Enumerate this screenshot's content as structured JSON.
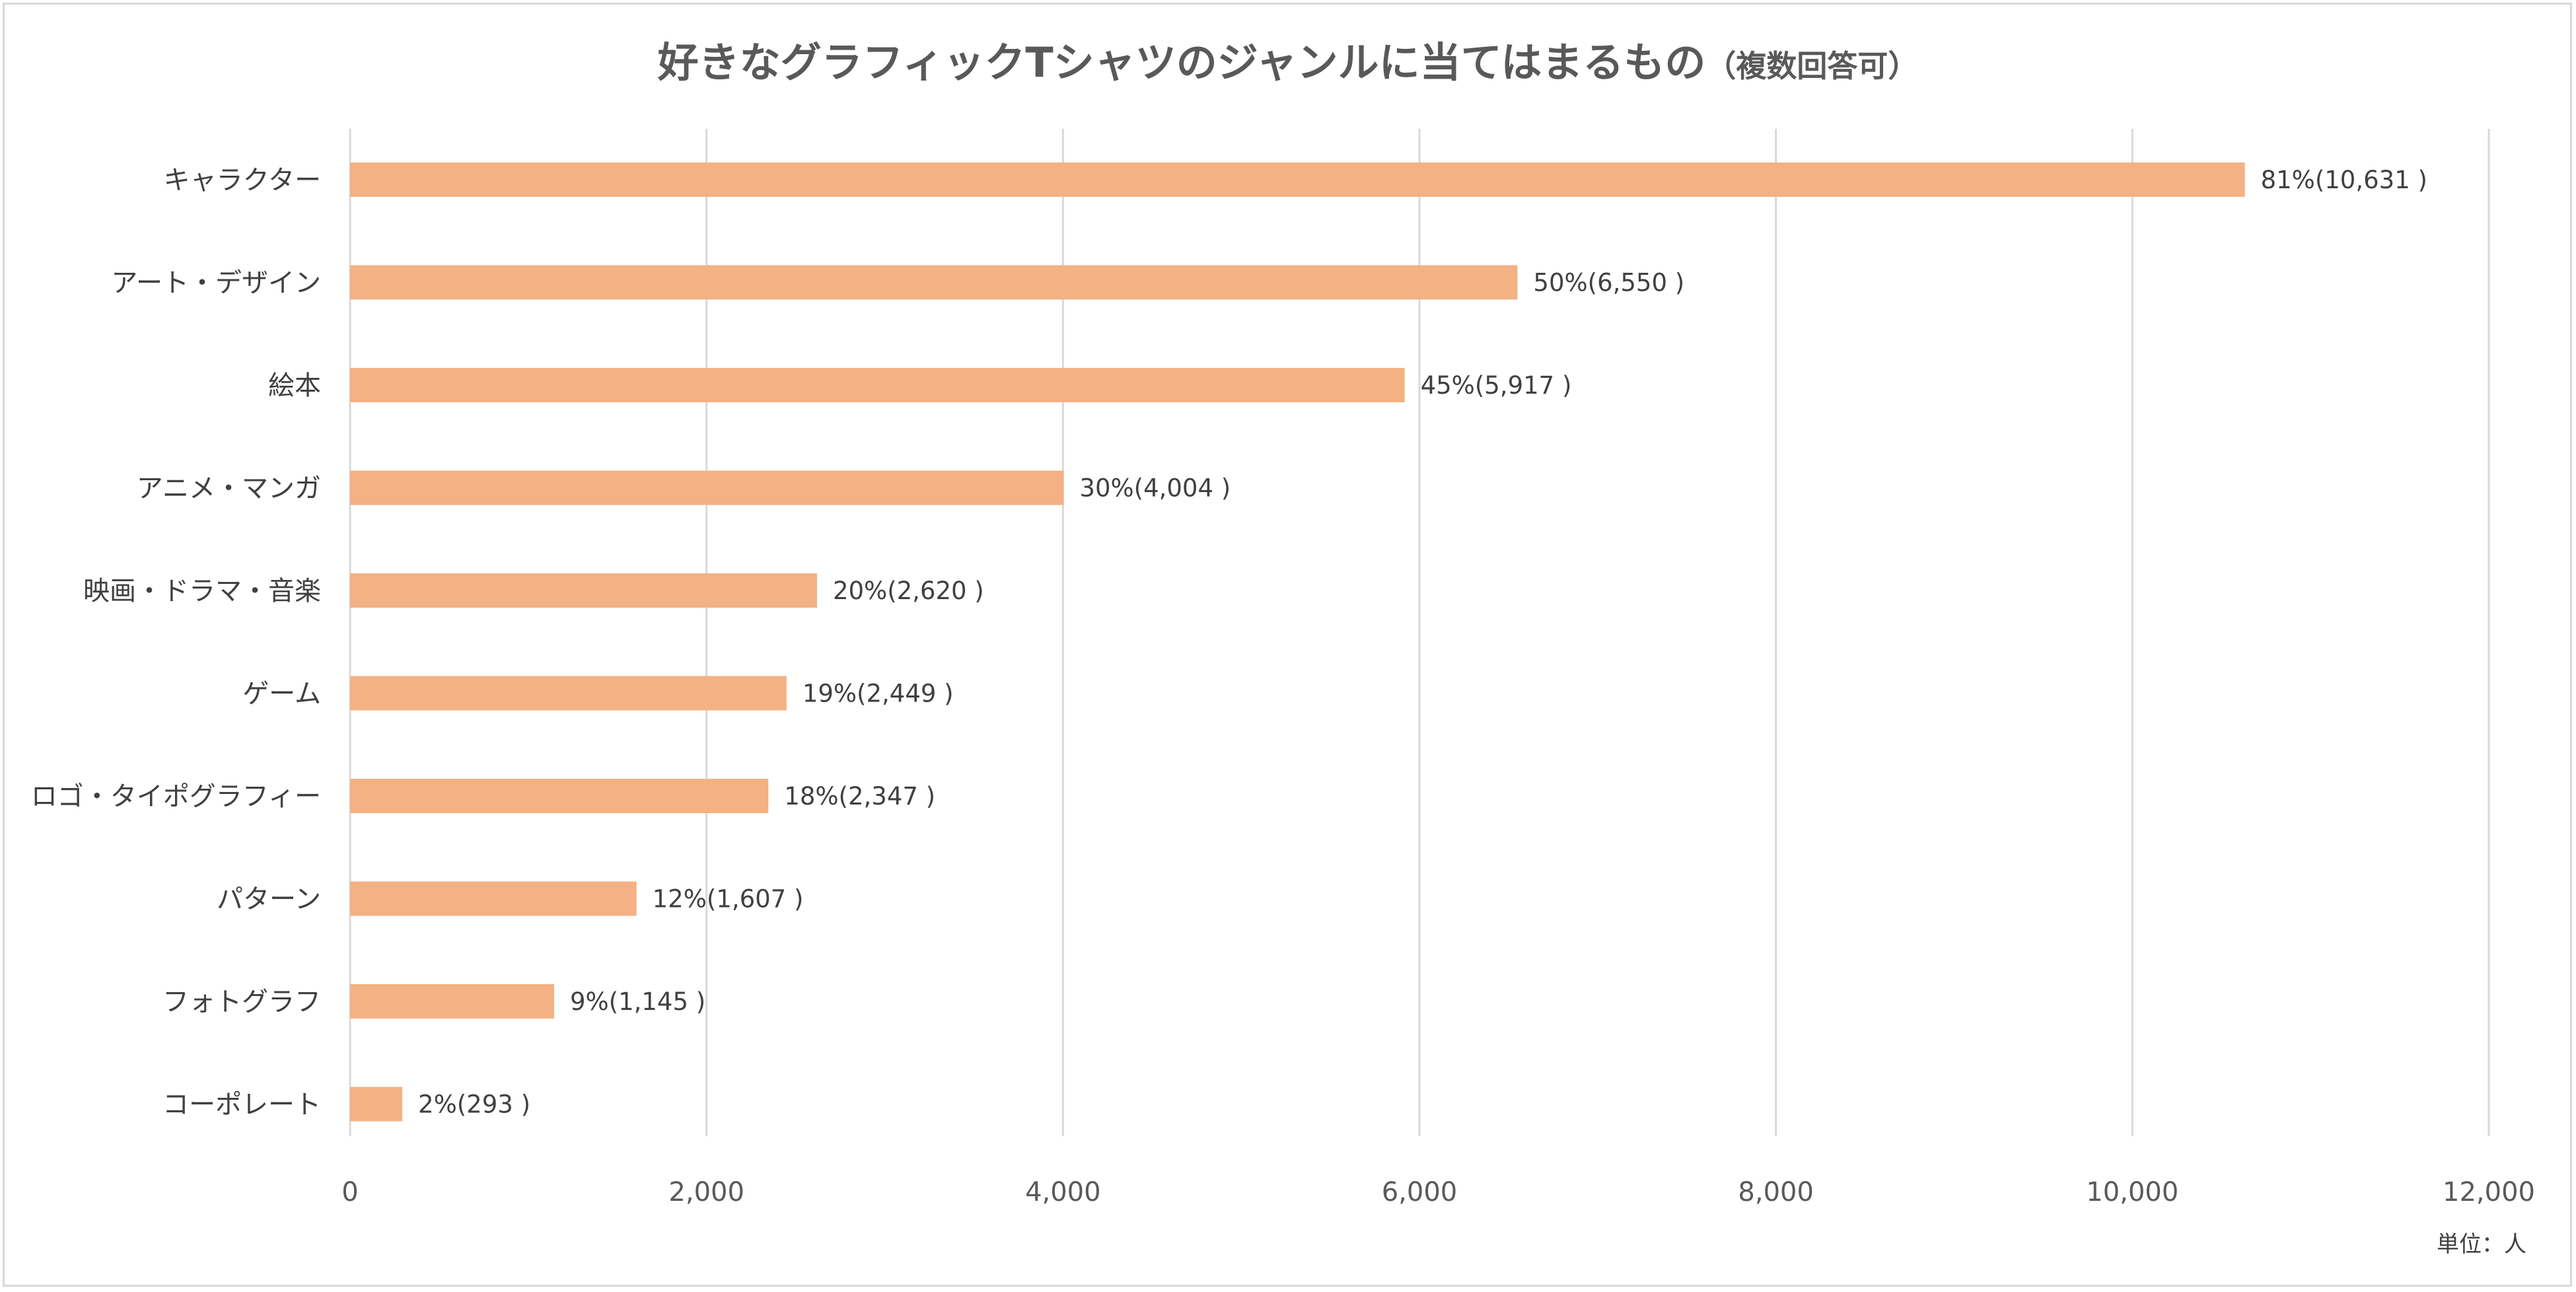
{
  "chart_data": {
    "type": "bar",
    "orientation": "horizontal",
    "title": "好きなグラフィックTシャツのジャンルに当てはまるもの",
    "subtitle": "（複数回答可）",
    "unit_label": "単位：人",
    "categories": [
      "キャラクター",
      "アート・デザイン",
      "絵本",
      "アニメ・マンガ",
      "映画・ドラマ・音楽",
      "ゲーム",
      "ロゴ・タイポグラフィー",
      "パターン",
      "フォトグラフ",
      "コーポレート"
    ],
    "values": [
      10631,
      6550,
      5917,
      4004,
      2620,
      2449,
      2347,
      1607,
      1145,
      293
    ],
    "data_labels": [
      "81%(10,631 )",
      "50%(6,550 )",
      "45%(5,917 )",
      "30%(4,004 )",
      "20%(2,620 )",
      "19%(2,449 )",
      "18%(2,347 )",
      "12%(1,607 )",
      "9%(1,145 )",
      "2%(293 )"
    ],
    "xlim": [
      0,
      12000
    ],
    "x_ticks": [
      0,
      2000,
      4000,
      6000,
      8000,
      10000,
      12000
    ],
    "x_tick_labels": [
      "0",
      "2,000",
      "4,000",
      "6,000",
      "8,000",
      "10,000",
      "12,000"
    ],
    "grid": true,
    "legend": "none",
    "bar_color": "#f4b183",
    "grid_color": "#d9d9d9"
  }
}
